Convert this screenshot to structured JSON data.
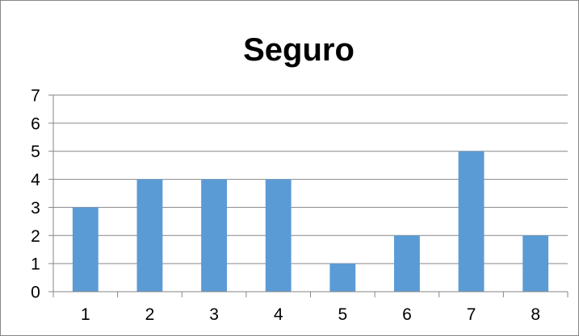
{
  "chart_data": {
    "type": "bar",
    "title": "Seguro",
    "categories": [
      "1",
      "2",
      "3",
      "4",
      "5",
      "6",
      "7",
      "8"
    ],
    "values": [
      3,
      4,
      4,
      4,
      1,
      2,
      5,
      2
    ],
    "ylim": [
      0,
      7
    ],
    "yticks": [
      "0",
      "1",
      "2",
      "3",
      "4",
      "5",
      "6",
      "7"
    ],
    "grid": true,
    "legend": "none",
    "bar_color": "#5b9bd5",
    "grid_color": "#868686"
  }
}
